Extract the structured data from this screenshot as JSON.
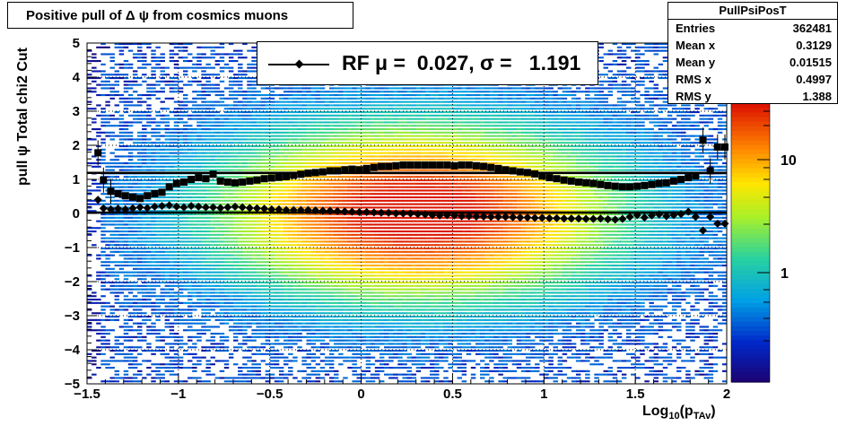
{
  "title": "Positive pull of Δ ψ from cosmics muons",
  "stats": {
    "name": "PullPsiPosT",
    "rows": [
      {
        "label": "Entries",
        "value": "362481"
      },
      {
        "label": "Mean x",
        "value": "0.3129"
      },
      {
        "label": "Mean y",
        "value": "0.01515"
      },
      {
        "label": "RMS x",
        "value": "0.4997"
      },
      {
        "label": "RMS y",
        "value": "1.388"
      }
    ]
  },
  "legend": {
    "text": "RF μ =  0.027, σ =   1.191"
  },
  "axes": {
    "xlabel": "Log",
    "xlabel_sub": "10",
    "xlabel_paren": "(p",
    "xlabel_sub2": "TAv",
    "xlabel_close": ")",
    "ylabel": "pull  ψ    Total chi2 Cut"
  },
  "chart_data": {
    "type": "heatmap",
    "title": "Positive pull of Δ ψ from cosmics muons",
    "xlim": [
      -1.5,
      2
    ],
    "ylim": [
      -5,
      5
    ],
    "x_ticks": [
      "−1.5",
      "−1",
      "−0.5",
      "0",
      "0.5",
      "1",
      "1.5",
      "2"
    ],
    "y_ticks": [
      "−5",
      "−4",
      "−3",
      "−2",
      "−1",
      "0",
      "1",
      "2",
      "3",
      "4",
      "5"
    ],
    "colorbar": {
      "scale": "log",
      "tick_labels": [
        "1",
        "10"
      ]
    },
    "grid": true,
    "mean_x": [
      -1.44,
      -1.41,
      -1.37,
      -1.33,
      -1.29,
      -1.25,
      -1.21,
      -1.17,
      -1.13,
      -1.09,
      -1.05,
      -1.01,
      -0.97,
      -0.93,
      -0.89,
      -0.85,
      -0.81,
      -0.77,
      -0.73,
      -0.69,
      -0.65,
      -0.61,
      -0.57,
      -0.53,
      -0.49,
      -0.45,
      -0.41,
      -0.37,
      -0.33,
      -0.29,
      -0.25,
      -0.21,
      -0.17,
      -0.13,
      -0.09,
      -0.05,
      -0.01,
      0.03,
      0.07,
      0.11,
      0.15,
      0.19,
      0.23,
      0.27,
      0.31,
      0.35,
      0.39,
      0.43,
      0.47,
      0.51,
      0.55,
      0.59,
      0.63,
      0.67,
      0.71,
      0.75,
      0.79,
      0.83,
      0.87,
      0.91,
      0.95,
      0.99,
      1.03,
      1.07,
      1.11,
      1.15,
      1.19,
      1.23,
      1.27,
      1.31,
      1.35,
      1.39,
      1.43,
      1.47,
      1.51,
      1.55,
      1.59,
      1.63,
      1.67,
      1.71,
      1.75,
      1.79,
      1.83,
      1.87,
      1.91,
      1.95,
      1.99
    ],
    "mean_y": [
      0.4,
      0.15,
      0.12,
      0.14,
      0.12,
      0.15,
      0.18,
      0.16,
      0.2,
      0.22,
      0.24,
      0.2,
      0.18,
      0.22,
      0.2,
      0.18,
      0.18,
      0.16,
      0.18,
      0.2,
      0.18,
      0.16,
      0.15,
      0.14,
      0.12,
      0.12,
      0.1,
      0.1,
      0.1,
      0.1,
      0.09,
      0.08,
      0.08,
      0.07,
      0.06,
      0.05,
      0.04,
      0.04,
      0.03,
      0.02,
      0.02,
      0.0,
      0.0,
      0.0,
      -0.02,
      -0.03,
      -0.05,
      -0.06,
      -0.05,
      -0.06,
      -0.08,
      -0.08,
      -0.09,
      -0.09,
      -0.1,
      -0.1,
      -0.1,
      -0.11,
      -0.12,
      -0.12,
      -0.13,
      -0.13,
      -0.14,
      -0.14,
      -0.15,
      -0.15,
      -0.15,
      -0.16,
      -0.16,
      -0.15,
      -0.17,
      -0.18,
      -0.16,
      -0.1,
      -0.05,
      -0.12,
      -0.06,
      -0.03,
      -0.08,
      -0.05,
      -0.02,
      0.05,
      -0.1,
      -0.5,
      -0.1,
      -0.3,
      -0.3
    ],
    "sigma_y": [
      1.78,
      0.98,
      0.65,
      0.58,
      0.52,
      0.48,
      0.44,
      0.52,
      0.58,
      0.62,
      0.78,
      0.88,
      0.92,
      1.0,
      1.05,
      1.02,
      1.15,
      0.95,
      0.92,
      0.9,
      0.92,
      0.95,
      0.98,
      1.02,
      1.04,
      1.06,
      1.08,
      1.12,
      1.15,
      1.18,
      1.2,
      1.22,
      1.25,
      1.25,
      1.28,
      1.3,
      1.28,
      1.32,
      1.35,
      1.38,
      1.38,
      1.4,
      1.42,
      1.42,
      1.42,
      1.42,
      1.42,
      1.42,
      1.42,
      1.4,
      1.42,
      1.42,
      1.4,
      1.38,
      1.35,
      1.32,
      1.28,
      1.25,
      1.22,
      1.2,
      1.16,
      1.1,
      1.05,
      1.02,
      0.98,
      0.95,
      0.92,
      0.9,
      0.88,
      0.85,
      0.82,
      0.8,
      0.78,
      0.78,
      0.8,
      0.82,
      0.85,
      0.88,
      0.9,
      0.95,
      1.0,
      1.05,
      1.1,
      2.15,
      1.25,
      1.95,
      1.95
    ],
    "fit_mean": 0.027,
    "fit_sigma": 1.191
  }
}
